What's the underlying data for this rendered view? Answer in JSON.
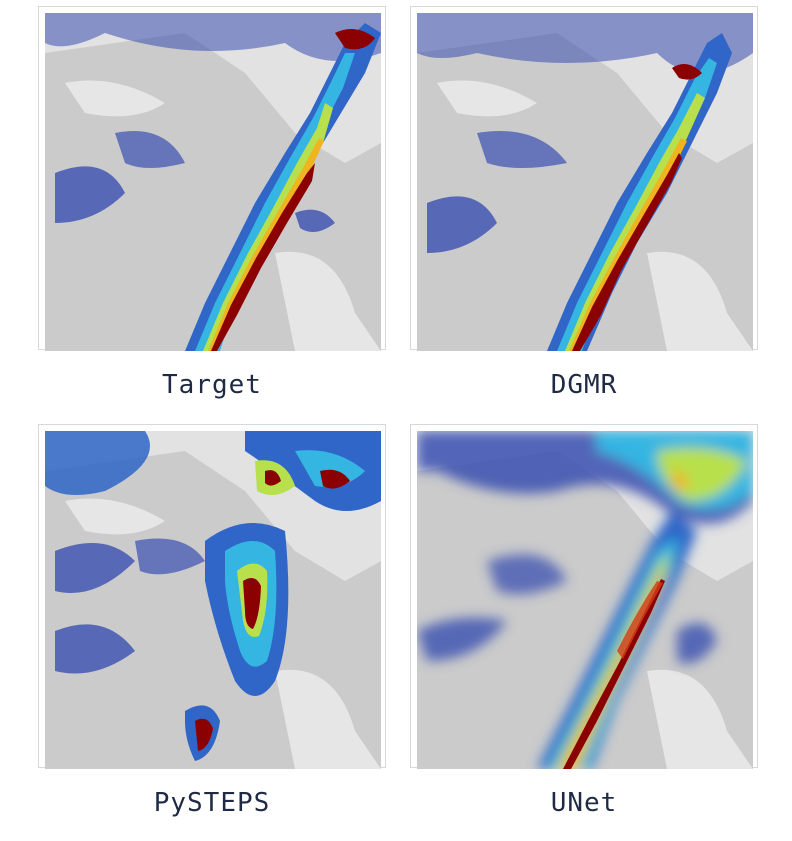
{
  "panels": [
    {
      "label": "Target"
    },
    {
      "label": "DGMR"
    },
    {
      "label": "PySTEPS"
    },
    {
      "label": "UNet"
    }
  ],
  "colors": {
    "land": "#cdcdcd",
    "water": "#e4e4e4",
    "low": "#3a4fb0",
    "mid": "#2fb5e0",
    "mid2": "#b6e14a",
    "high": "#f2b21d",
    "peak": "#8b0000"
  }
}
